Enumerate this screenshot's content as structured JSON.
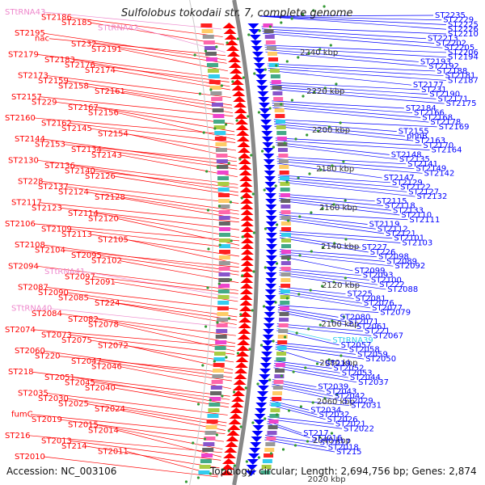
{
  "title": "Sulfolobus tokodaii str. 7, complete genome",
  "footer": {
    "accession": "Accession: NC_003106",
    "summary": "Topology: circular; Length: 2,694,756 bp; Genes: 2,874"
  },
  "colors": {
    "left_label": "#ff0000",
    "right_label": "#0000ff",
    "rna_left": "#ee88cc",
    "rna_right": "#33ccee",
    "backbone": "#888888",
    "tick_dot": "#339933",
    "gene_forward": "#ff0000",
    "gene_reverse": "#0000ff"
  },
  "ticks": [
    "2240 kbp",
    "2220 kbp",
    "2200 kbp",
    "2180 kbp",
    "2160 kbp",
    "2140 kbp",
    "2120 kbp",
    "2100 kbp",
    "2080 kbp",
    "2060 kbp",
    "2040 kbp",
    "2020 kbp"
  ],
  "left_genes": [
    "STtRNA43",
    "ST2186",
    "ST2185",
    "STtRNA42",
    "ST2195",
    "nac",
    "ST232",
    "ST2191",
    "ST2179",
    "ST2183",
    "ST2176",
    "ST2174",
    "ST2173",
    "ST2159",
    "ST2158",
    "ST2161",
    "ST2157",
    "ST229",
    "ST2167",
    "ST2156",
    "ST2160",
    "ST2162",
    "ST2145",
    "ST2154",
    "ST2144",
    "ST2153",
    "ST2134",
    "ST2143",
    "ST2130",
    "ST2136",
    "ST2140",
    "ST2126",
    "ST228",
    "ST2137",
    "ST2124",
    "ST2128",
    "ST2117",
    "ST2123",
    "ST2114",
    "ST2120",
    "ST2106",
    "ST2109",
    "ST2113",
    "ST2105",
    "ST2108",
    "ST2104",
    "ST2095",
    "ST2102",
    "ST2094",
    "STtRNA41",
    "ST2097",
    "ST2091",
    "ST2087",
    "ST2090",
    "ST2085",
    "ST224",
    "STtRNA40",
    "ST2084",
    "ST2082",
    "ST2078",
    "ST2074",
    "ST2073",
    "ST2075",
    "ST2072",
    "ST2060",
    "ST220",
    "ST2047",
    "ST2046",
    "ST218",
    "ST2051",
    "ST2045",
    "ST2040",
    "ST2035",
    "ST2030",
    "ST2025",
    "ST2024",
    "fumC",
    "ST2019",
    "ST2015",
    "ST2014",
    "ST216",
    "ST2013",
    "ST214",
    "ST2011",
    "ST2010"
  ],
  "right_genes": [
    "ST2235",
    "ST2229",
    "ST2225",
    "ST2226",
    "ST2210",
    "ST2213",
    "ST2202",
    "ST2205",
    "ST2206",
    "ST2194",
    "ST2193",
    "ST2192",
    "ST2188",
    "ST2181",
    "ST2187",
    "ST2177",
    "ST231",
    "ST2190",
    "ST2171",
    "ST2175",
    "ST2184",
    "ST2166",
    "ST2168",
    "ST2178",
    "ST2169",
    "ST2155",
    "phhB",
    "ST2163",
    "ST2170",
    "ST2164",
    "ST2148",
    "ST2135",
    "ST2141",
    "ST2149",
    "ST2142",
    "ST2147",
    "ST2129",
    "ST2122",
    "ST2127",
    "ST2132",
    "ST2115",
    "ST2118",
    "ST2133",
    "ST2110",
    "ST2111",
    "ST2119",
    "ST2112",
    "ST2121",
    "ST2101",
    "ST2103",
    "ST227",
    "ST226",
    "ST2098",
    "ST2089",
    "ST2092",
    "ST2099",
    "ST2093",
    "ST2100",
    "ST222",
    "ST2088",
    "ST225",
    "ST2081",
    "ST2076",
    "ST2077",
    "ST2079",
    "ST2080",
    "ST2071",
    "ST2061",
    "ST221",
    "ST2067",
    "STtRNA39",
    "ST2057",
    "ST2058",
    "ST2059",
    "ST2050",
    "ST219",
    "ST2052",
    "ST2053",
    "ST2044",
    "ST2037",
    "ST2039",
    "ST2043",
    "ST2042",
    "ST2029",
    "ST2031",
    "ST2034",
    "ST2032",
    "ST2026",
    "ST2021",
    "ST2022",
    "ST217",
    "ST2016",
    "ST2017",
    "ST2018",
    "ST215"
  ],
  "rna_genes": [
    "STtRNA43",
    "STtRNA42",
    "STtRNA41",
    "STtRNA40",
    "STtRNA39"
  ]
}
